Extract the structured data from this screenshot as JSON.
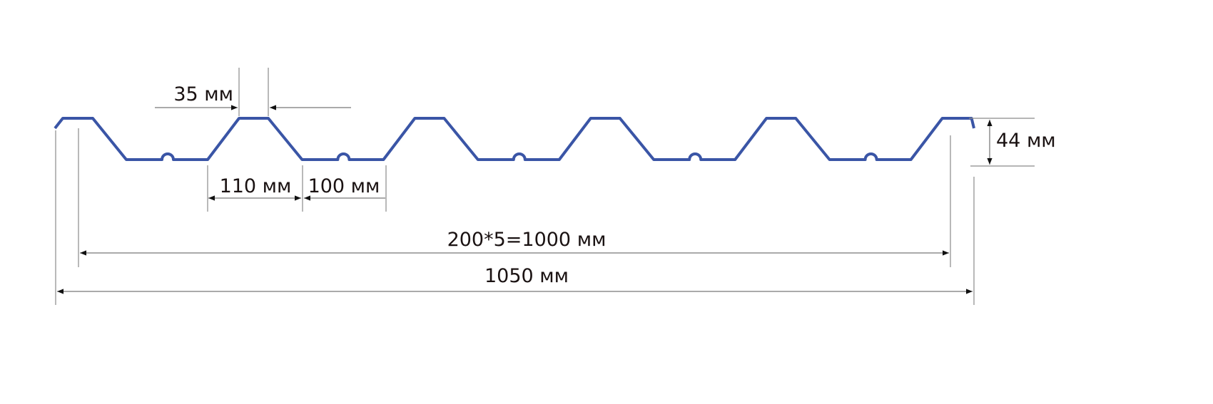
{
  "profile_color": "#3a55a6",
  "labels": {
    "crest_width": "35 мм",
    "trough_base": "110 мм",
    "trough_flat": "100 мм",
    "height": "44 мм",
    "effective_width": "200*5=1000 мм",
    "total_width": "1050 мм"
  }
}
